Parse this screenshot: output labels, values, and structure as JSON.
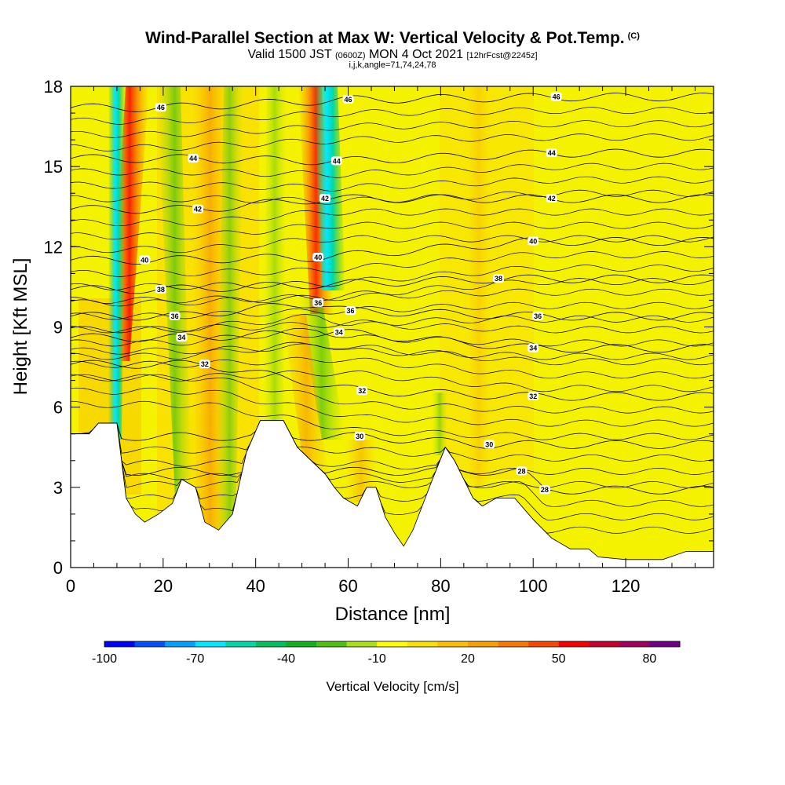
{
  "title": "Wind-Parallel Section at Max W: Vertical Velocity & Pot.Temp.",
  "title_mark": "(C)",
  "subtitle_valid": "Valid 1500 JST",
  "subtitle_z": "(0600Z)",
  "subtitle_date": "MON 4 Oct 2021",
  "subtitle_fcst": "[12hrFcst@2245z]",
  "subtitle_ijk": "i,j,k,angle=71,74,24,78",
  "colors": {
    "background_field": "#f5f200",
    "terrain": "#ffffff",
    "contour": "#000000"
  },
  "chart_data": {
    "type": "heatmap",
    "xlabel": "Distance [nm]",
    "ylabel": "Height [Kft MSL]",
    "xlim": [
      0,
      139
    ],
    "ylim": [
      0,
      18
    ],
    "xticks": [
      "0",
      "20",
      "40",
      "60",
      "80",
      "100",
      "120"
    ],
    "xtick_values": [
      0,
      20,
      40,
      60,
      80,
      100,
      120
    ],
    "yticks": [
      "0",
      "3",
      "6",
      "9",
      "12",
      "15",
      "18"
    ],
    "ytick_values": [
      0,
      3,
      6,
      9,
      12,
      15,
      18
    ],
    "colorbar": {
      "label": "Vertical Velocity [cm/s]",
      "ticks": [
        "-100",
        "-70",
        "-40",
        "-10",
        "20",
        "50",
        "80"
      ],
      "tick_values": [
        -100,
        -70,
        -40,
        -10,
        20,
        50,
        80
      ],
      "boundaries": [
        -100,
        -90,
        -80,
        -70,
        -60,
        -50,
        -40,
        -30,
        -20,
        -10,
        0,
        10,
        20,
        30,
        40,
        50,
        60,
        70,
        80,
        90
      ],
      "colors": [
        "#0000ff",
        "#0050ff",
        "#00a0ff",
        "#00e8ff",
        "#00d8a8",
        "#00c060",
        "#10b020",
        "#50c010",
        "#a8e020",
        "#ffff00",
        "#fae000",
        "#fac000",
        "#f8a000",
        "#f87800",
        "#f84800",
        "#f80000",
        "#c80030",
        "#a00060",
        "#700088"
      ]
    },
    "terrain_profile_kft": [
      [
        0,
        5.0
      ],
      [
        4,
        5.0
      ],
      [
        6,
        5.4
      ],
      [
        10,
        5.4
      ],
      [
        12,
        2.6
      ],
      [
        14,
        2.0
      ],
      [
        16,
        1.7
      ],
      [
        19,
        2.0
      ],
      [
        22,
        2.4
      ],
      [
        24,
        3.3
      ],
      [
        27,
        3.0
      ],
      [
        29,
        1.7
      ],
      [
        32,
        1.4
      ],
      [
        35,
        2.0
      ],
      [
        38,
        4.3
      ],
      [
        41,
        5.5
      ],
      [
        46,
        5.5
      ],
      [
        49,
        4.5
      ],
      [
        52,
        4.0
      ],
      [
        55,
        3.5
      ],
      [
        57,
        3.0
      ],
      [
        59,
        2.6
      ],
      [
        62,
        2.3
      ],
      [
        64,
        3.0
      ],
      [
        66,
        3.0
      ],
      [
        68,
        1.9
      ],
      [
        70,
        1.3
      ],
      [
        72,
        0.8
      ],
      [
        74,
        1.4
      ],
      [
        76,
        2.3
      ],
      [
        78,
        3.2
      ],
      [
        81,
        4.5
      ],
      [
        83,
        4.0
      ],
      [
        85,
        3.3
      ],
      [
        87,
        2.6
      ],
      [
        89,
        2.3
      ],
      [
        92,
        2.6
      ],
      [
        96,
        2.6
      ],
      [
        98,
        2.2
      ],
      [
        100,
        1.8
      ],
      [
        104,
        1.1
      ],
      [
        108,
        0.7
      ],
      [
        112,
        0.7
      ],
      [
        114,
        0.4
      ],
      [
        120,
        0.3
      ],
      [
        128,
        0.3
      ],
      [
        133,
        0.6
      ],
      [
        139,
        0.6
      ]
    ],
    "theta_contour_labels": [
      {
        "x": 19.5,
        "y": 17.2,
        "text": "46"
      },
      {
        "x": 60.0,
        "y": 17.5,
        "text": "46"
      },
      {
        "x": 105.0,
        "y": 17.6,
        "text": "46"
      },
      {
        "x": 26.5,
        "y": 15.3,
        "text": "44"
      },
      {
        "x": 57.5,
        "y": 15.2,
        "text": "44"
      },
      {
        "x": 104.0,
        "y": 15.5,
        "text": "44"
      },
      {
        "x": 27.5,
        "y": 13.4,
        "text": "42"
      },
      {
        "x": 55.0,
        "y": 13.8,
        "text": "42"
      },
      {
        "x": 104.0,
        "y": 13.8,
        "text": "42"
      },
      {
        "x": 16.0,
        "y": 11.5,
        "text": "40"
      },
      {
        "x": 53.5,
        "y": 11.6,
        "text": "40"
      },
      {
        "x": 100.0,
        "y": 12.2,
        "text": "40"
      },
      {
        "x": 19.5,
        "y": 10.4,
        "text": "38"
      },
      {
        "x": 92.5,
        "y": 10.8,
        "text": "38"
      },
      {
        "x": 22.5,
        "y": 9.4,
        "text": "36"
      },
      {
        "x": 53.5,
        "y": 9.9,
        "text": "36"
      },
      {
        "x": 60.5,
        "y": 9.6,
        "text": "36"
      },
      {
        "x": 101.0,
        "y": 9.4,
        "text": "36"
      },
      {
        "x": 24.0,
        "y": 8.6,
        "text": "34"
      },
      {
        "x": 58.0,
        "y": 8.8,
        "text": "34"
      },
      {
        "x": 100.0,
        "y": 8.2,
        "text": "34"
      },
      {
        "x": 29.0,
        "y": 7.6,
        "text": "32"
      },
      {
        "x": 63.0,
        "y": 6.6,
        "text": "32"
      },
      {
        "x": 100.0,
        "y": 6.4,
        "text": "32"
      },
      {
        "x": 62.5,
        "y": 4.9,
        "text": "30"
      },
      {
        "x": 90.5,
        "y": 4.6,
        "text": "30"
      },
      {
        "x": 97.5,
        "y": 3.6,
        "text": "28"
      },
      {
        "x": 102.5,
        "y": 2.9,
        "text": "28"
      }
    ]
  }
}
